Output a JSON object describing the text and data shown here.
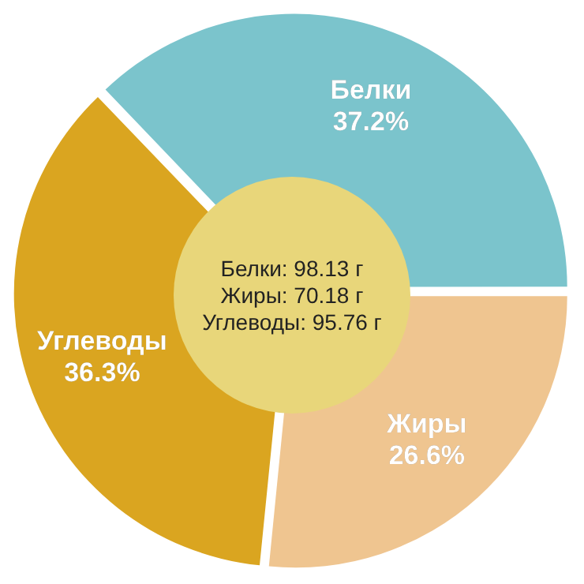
{
  "chart_data": {
    "type": "pie",
    "categories": [
      "Белки",
      "Жиры",
      "Углеводы"
    ],
    "values": [
      37.2,
      26.6,
      36.3
    ],
    "value_labels": [
      "37.2%",
      "26.6%",
      "36.3%"
    ],
    "colors": [
      "#7bc4cc",
      "#efc590",
      "#daa520"
    ],
    "annotations": [
      "Белки: 98.13 г",
      "Жиры: 70.18 г",
      "Углеводы: 95.76 г"
    ],
    "legend": false
  }
}
